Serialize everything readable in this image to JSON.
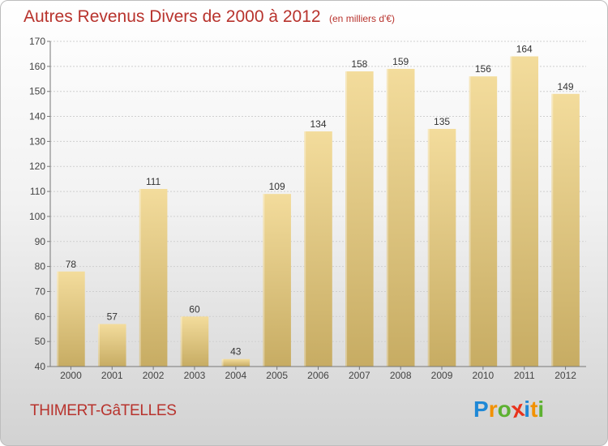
{
  "title": "Autres Revenus Divers de 2000 à 2012",
  "unit_note": "(en milliers d'€)",
  "commune": "THIMERT-GâTELLES",
  "logo": {
    "letters": [
      "P",
      "r",
      "o",
      "x",
      "i",
      "t",
      "i"
    ],
    "colors": [
      "#1e88d6",
      "#f29100",
      "#5db131",
      "#e8331c",
      "#1e88d6",
      "#f29100",
      "#5db131"
    ]
  },
  "chart_data": {
    "type": "bar",
    "categories": [
      "2000",
      "2001",
      "2002",
      "2003",
      "2004",
      "2005",
      "2006",
      "2007",
      "2008",
      "2009",
      "2010",
      "2011",
      "2012"
    ],
    "values": [
      78,
      57,
      111,
      60,
      43,
      109,
      134,
      158,
      159,
      135,
      156,
      164,
      149
    ],
    "ylim": [
      40,
      170
    ],
    "yticks": [
      40,
      50,
      60,
      70,
      80,
      90,
      100,
      110,
      120,
      130,
      140,
      150,
      160,
      170
    ],
    "grid": true,
    "bar_color_light": "#f3dc9c",
    "bar_color_dark": "#c7ac63"
  }
}
